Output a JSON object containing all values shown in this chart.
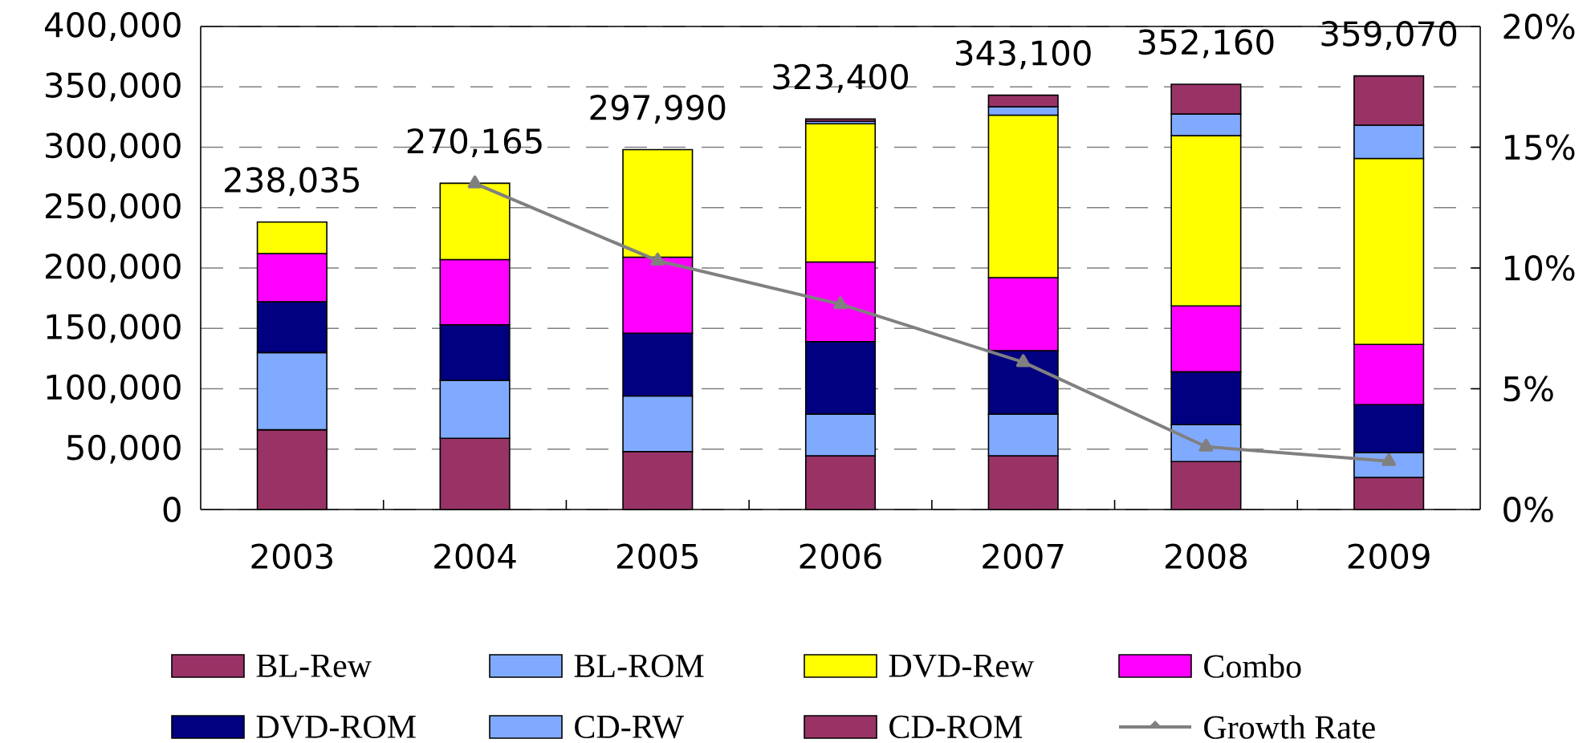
{
  "chart_data": {
    "type": "bar",
    "stacked": true,
    "categories": [
      "2003",
      "2004",
      "2005",
      "2006",
      "2007",
      "2008",
      "2009"
    ],
    "series": [
      {
        "name": "CD-ROM",
        "color": "#993366",
        "values": [
          66000,
          59000,
          48000,
          44500,
          44500,
          39700,
          26600
        ]
      },
      {
        "name": "CD-RW",
        "color": "#80aaff",
        "values": [
          64000,
          48000,
          46000,
          34500,
          34500,
          30600,
          20600
        ]
      },
      {
        "name": "DVD-ROM",
        "color": "#000080",
        "values": [
          42000,
          46000,
          52000,
          60000,
          52500,
          43700,
          39700
        ]
      },
      {
        "name": "Combo",
        "color": "#ff00ff",
        "values": [
          40000,
          54000,
          63000,
          66000,
          60500,
          54600,
          49800
        ]
      },
      {
        "name": "DVD-Rew",
        "color": "#ffff00",
        "values": [
          26035,
          63165,
          88990,
          114400,
          134600,
          141000,
          154000
        ]
      },
      {
        "name": "BL-ROM",
        "color": "#80aaff",
        "values": [
          null,
          null,
          null,
          2000,
          7000,
          17900,
          27600
        ]
      },
      {
        "name": "BL-Rew",
        "color": "#993366",
        "values": [
          null,
          null,
          null,
          2000,
          9500,
          24660,
          40770
        ]
      },
      {
        "name": "Growth Rate",
        "type": "line",
        "axis": "y2",
        "color": "#808080",
        "marker": "triangle",
        "values": [
          null,
          13.5,
          10.3,
          8.5,
          6.1,
          2.6,
          2.0
        ]
      }
    ],
    "totals": [
      "238,035",
      "270,165",
      "297,990",
      "323,400",
      "343,100",
      "352,160",
      "359,070"
    ],
    "ylim": [
      0,
      400000
    ],
    "yticks": [
      {
        "value": 0,
        "label": "0"
      },
      {
        "value": 50000,
        "label": "50,000"
      },
      {
        "value": 100000,
        "label": "100,000"
      },
      {
        "value": 150000,
        "label": "150,000"
      },
      {
        "value": 200000,
        "label": "200,000"
      },
      {
        "value": 250000,
        "label": "250,000"
      },
      {
        "value": 300000,
        "label": "300,000"
      },
      {
        "value": 350000,
        "label": "350,000"
      },
      {
        "value": 400000,
        "label": "400,000"
      }
    ],
    "y2lim": [
      0,
      20
    ],
    "y2ticks": [
      {
        "value": 0,
        "label": "0%"
      },
      {
        "value": 5,
        "label": "5%"
      },
      {
        "value": 10,
        "label": "10%"
      },
      {
        "value": 15,
        "label": "15%"
      },
      {
        "value": 20,
        "label": "20%"
      }
    ],
    "grid": "y",
    "legend": "bottom"
  }
}
